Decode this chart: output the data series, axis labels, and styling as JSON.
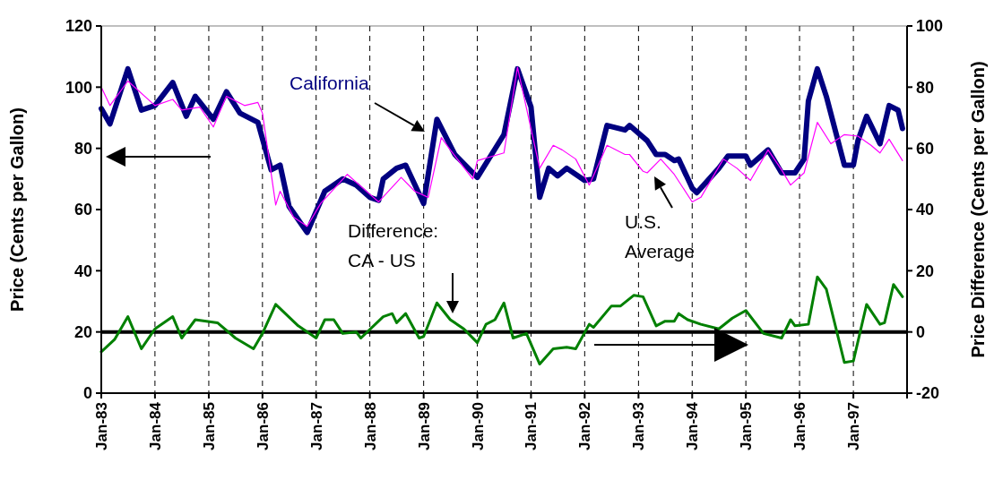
{
  "chart_data": {
    "type": "line",
    "ylabel": "Price (Cents per Gallon)",
    "y2label": "Price Difference (Cents per Gallon)",
    "xlim": [
      "1983-01",
      "1998-01"
    ],
    "xticks": [
      {
        "value": "1983-01",
        "label": "Jan-83"
      },
      {
        "value": "1984-01",
        "label": "Jan-84"
      },
      {
        "value": "1985-01",
        "label": "Jan-85"
      },
      {
        "value": "1986-01",
        "label": "Jan-86"
      },
      {
        "value": "1987-01",
        "label": "Jan-87"
      },
      {
        "value": "1988-01",
        "label": "Jan-88"
      },
      {
        "value": "1989-01",
        "label": "Jan-89"
      },
      {
        "value": "1990-01",
        "label": "Jan-90"
      },
      {
        "value": "1991-01",
        "label": "Jan-91"
      },
      {
        "value": "1992-01",
        "label": "Jan-92"
      },
      {
        "value": "1993-01",
        "label": "Jan-93"
      },
      {
        "value": "1994-01",
        "label": "Jan-94"
      },
      {
        "value": "1995-01",
        "label": "Jan-95"
      },
      {
        "value": "1996-01",
        "label": "Jan-96"
      },
      {
        "value": "1997-01",
        "label": "Jan-97"
      },
      {
        "value": "1998-01",
        "label": null
      }
    ],
    "ylim": [
      0,
      120
    ],
    "yticks": [
      0,
      20,
      40,
      60,
      80,
      100,
      120
    ],
    "y2lim": [
      -20,
      100
    ],
    "y2ticks": [
      -20,
      0,
      20,
      40,
      60,
      80,
      100
    ],
    "grid": "x",
    "ref_lines": [
      {
        "axis": "y2",
        "value": 0
      }
    ],
    "series": [
      {
        "name": "California",
        "color": "#000080",
        "x": [
          "1983-01",
          "1983-03",
          "1983-07",
          "1983-10",
          "1984-01",
          "1984-05",
          "1984-08",
          "1984-10",
          "1985-02",
          "1985-05",
          "1985-08",
          "1985-12",
          "1986-03",
          "1986-05",
          "1986-07",
          "1986-11",
          "1987-03",
          "1987-07",
          "1987-10",
          "1988-01",
          "1988-03",
          "1988-04",
          "1988-07",
          "1988-09",
          "1989-01",
          "1989-04",
          "1989-08",
          "1990-01",
          "1990-07",
          "1990-10",
          "1991-01",
          "1991-03",
          "1991-05",
          "1991-07",
          "1991-09",
          "1992-01",
          "1992-03",
          "1992-06",
          "1992-10",
          "1992-11",
          "1993-03",
          "1993-05",
          "1993-07",
          "1993-09",
          "1993-10",
          "1994-01",
          "1994-02",
          "1994-07",
          "1994-09",
          "1995-01",
          "1995-02",
          "1995-06",
          "1995-09",
          "1995-12",
          "1996-02",
          "1996-03",
          "1996-05",
          "1996-07",
          "1996-11",
          "1997-01",
          "1997-02",
          "1997-04",
          "1997-07",
          "1997-09",
          "1997-11",
          "1997-12"
        ],
        "values": [
          93,
          88,
          106,
          92.5,
          94,
          101.5,
          90.5,
          97,
          89.5,
          98.5,
          91.5,
          88.5,
          73,
          74.5,
          61,
          52.5,
          66,
          70,
          68,
          64,
          63,
          70,
          73.5,
          74.5,
          62,
          89.5,
          78,
          70.5,
          84.5,
          106,
          93.5,
          64,
          73.5,
          71,
          73.5,
          69.5,
          70,
          87.5,
          86,
          87.5,
          82.5,
          78,
          78,
          76,
          76.5,
          67,
          65.5,
          73.5,
          77.5,
          77.5,
          74.5,
          79.5,
          72,
          72,
          76.5,
          95.5,
          106,
          97,
          74.5,
          74.5,
          82.5,
          90.5,
          81.5,
          94,
          92.5,
          86.5
        ]
      },
      {
        "name": "U.S. Average",
        "color": "#ff00ff",
        "x": [
          "1983-01",
          "1983-03",
          "1983-07",
          "1984-01",
          "1984-05",
          "1984-07",
          "1984-11",
          "1985-02",
          "1985-05",
          "1985-09",
          "1985-12",
          "1986-01",
          "1986-04",
          "1986-05",
          "1986-08",
          "1986-11",
          "1987-02",
          "1987-08",
          "1988-01",
          "1988-03",
          "1988-08",
          "1988-11",
          "1989-02",
          "1989-05",
          "1989-07",
          "1989-12",
          "1990-01",
          "1990-07",
          "1990-10",
          "1991-03",
          "1991-06",
          "1991-08",
          "1991-11",
          "1992-02",
          "1992-06",
          "1992-10",
          "1992-11",
          "1993-02",
          "1993-03",
          "1993-06",
          "1993-09",
          "1994-01",
          "1994-03",
          "1994-08",
          "1994-11",
          "1995-02",
          "1995-06",
          "1995-09",
          "1995-11",
          "1996-02",
          "1996-05",
          "1996-08",
          "1996-11",
          "1997-02",
          "1997-05",
          "1997-07",
          "1997-09",
          "1997-12"
        ],
        "values": [
          100,
          94,
          102,
          94,
          96,
          92.5,
          93.5,
          87,
          97,
          94,
          95,
          91.5,
          61.5,
          66,
          57.5,
          54.5,
          62,
          71.5,
          65,
          62.5,
          70.5,
          66,
          64,
          83.5,
          79.5,
          70,
          76,
          78.5,
          106.5,
          73.5,
          81,
          79.5,
          76.5,
          68,
          81,
          78,
          78,
          72.5,
          72,
          76.5,
          71.5,
          62.5,
          64,
          76.5,
          73.5,
          69.5,
          79.5,
          73,
          68,
          72,
          88.5,
          81.5,
          84.5,
          84,
          81,
          78.5,
          83,
          76
        ]
      },
      {
        "name": "Difference: CA - US",
        "color": "#008000",
        "axis": "y2",
        "x": [
          "1983-01",
          "1983-04",
          "1983-07",
          "1983-10",
          "1984-01",
          "1984-05",
          "1984-07",
          "1984-10",
          "1985-03",
          "1985-07",
          "1985-11",
          "1986-01",
          "1986-04",
          "1986-09",
          "1987-01",
          "1987-03",
          "1987-05",
          "1987-07",
          "1987-10",
          "1987-11",
          "1988-04",
          "1988-06",
          "1988-07",
          "1988-09",
          "1988-12",
          "1989-01",
          "1989-04",
          "1989-07",
          "1989-10",
          "1990-01",
          "1990-03",
          "1990-05",
          "1990-07",
          "1990-09",
          "1990-12",
          "1991-03",
          "1991-06",
          "1991-09",
          "1991-11",
          "1992-02",
          "1992-03",
          "1992-07",
          "1992-09",
          "1992-12",
          "1993-02",
          "1993-05",
          "1993-07",
          "1993-09",
          "1993-10",
          "1993-12",
          "1994-03",
          "1994-07",
          "1994-10",
          "1995-01",
          "1995-05",
          "1995-09",
          "1995-11",
          "1995-12",
          "1996-03",
          "1996-05",
          "1996-07",
          "1996-11",
          "1997-01",
          "1997-04",
          "1997-07",
          "1997-08",
          "1997-10",
          "1997-12"
        ],
        "values": [
          -6.5,
          -2.5,
          5,
          -5.5,
          1,
          5,
          -2,
          4,
          3,
          -2,
          -5.5,
          -0.5,
          9,
          2,
          -2,
          4,
          4,
          -0.5,
          0,
          -2,
          5,
          6,
          3,
          6,
          -2,
          -1.5,
          9.5,
          4,
          1,
          -3.5,
          2.5,
          4,
          9.5,
          -2,
          -0.5,
          -10.5,
          -5.5,
          -5,
          -5.5,
          2.5,
          1.5,
          8.5,
          8.5,
          12,
          11.5,
          2,
          3.5,
          3.5,
          6,
          4,
          2.5,
          1,
          4.5,
          7,
          -0.5,
          -2,
          4,
          2,
          2.5,
          18,
          14,
          -10,
          -9.5,
          9,
          2.5,
          3,
          15.5,
          11.5
        ]
      }
    ]
  }
}
